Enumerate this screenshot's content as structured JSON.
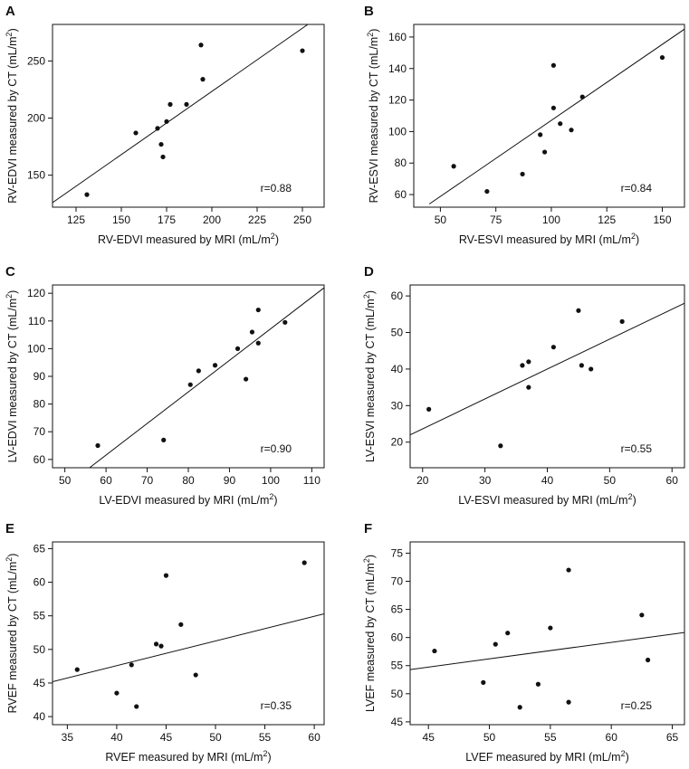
{
  "figure": {
    "background": "#ffffff",
    "ink": "#111111"
  },
  "chart_data": [
    {
      "type": "scatter",
      "panel": "A",
      "xlabel": "RV-EDVI measured by MRI (mL/m",
      "ylabel": "RV-EDVI measured by CT (mL/m",
      "unit_superscript": "2",
      "unit_close": ")",
      "xlim": [
        112,
        262
      ],
      "ylim": [
        122,
        282
      ],
      "xticks": [
        125,
        150,
        175,
        200,
        225,
        250
      ],
      "yticks": [
        150,
        200,
        250
      ],
      "x": [
        131,
        158,
        170,
        172,
        173,
        175,
        177,
        186,
        194,
        195,
        250
      ],
      "y": [
        133,
        187,
        191,
        177,
        166,
        197,
        212,
        212,
        264,
        234,
        259
      ],
      "fit_line": {
        "x": [
          112,
          253
        ],
        "y": [
          126,
          282
        ]
      },
      "r_text": "r=0.88"
    },
    {
      "type": "scatter",
      "panel": "B",
      "xlabel": "RV-ESVI measured by MRI (mL/m",
      "ylabel": "RV-ESVI  measured by CT (mL/m",
      "unit_superscript": "2",
      "unit_close": ")",
      "xlim": [
        38,
        160
      ],
      "ylim": [
        52,
        168
      ],
      "xticks": [
        50,
        75,
        100,
        125,
        150
      ],
      "yticks": [
        60,
        80,
        100,
        120,
        140,
        160
      ],
      "x": [
        56,
        71,
        87,
        95,
        97,
        101,
        101,
        104,
        109,
        114,
        150
      ],
      "y": [
        78,
        62,
        73,
        98,
        87,
        142,
        115,
        105,
        101,
        122,
        147
      ],
      "fit_line": {
        "x": [
          45,
          160
        ],
        "y": [
          54,
          165
        ]
      },
      "r_text": "r=0.84"
    },
    {
      "type": "scatter",
      "panel": "C",
      "xlabel": "LV-EDVI measured by MRI (mL/m",
      "ylabel": "LV-EDVI measured by CT (mL/m",
      "unit_superscript": "2",
      "unit_close": ")",
      "xlim": [
        47,
        113
      ],
      "ylim": [
        57,
        123
      ],
      "xticks": [
        50,
        60,
        70,
        80,
        90,
        100,
        110
      ],
      "yticks": [
        60,
        70,
        80,
        90,
        100,
        110,
        120
      ],
      "x": [
        58,
        74,
        80.5,
        82.5,
        86.5,
        92,
        94,
        95.5,
        97,
        97,
        103.5
      ],
      "y": [
        65,
        67,
        87,
        92,
        94,
        100,
        89,
        106,
        114,
        102,
        109.5
      ],
      "fit_line": {
        "x": [
          56,
          113
        ],
        "y": [
          57,
          122
        ]
      },
      "r_text": "r=0.90"
    },
    {
      "type": "scatter",
      "panel": "D",
      "xlabel": "LV-ESVI measured by MRI (mL/m",
      "ylabel": "LV-ESVI measured by CT (mL/m",
      "unit_superscript": "2",
      "unit_close": ")",
      "xlim": [
        18,
        62
      ],
      "ylim": [
        13,
        63
      ],
      "xticks": [
        20,
        30,
        40,
        50,
        60
      ],
      "yticks": [
        20,
        30,
        40,
        50,
        60
      ],
      "x": [
        21,
        32.5,
        36,
        37,
        37,
        41,
        45,
        45.5,
        47,
        52
      ],
      "y": [
        29,
        19,
        41,
        35,
        42,
        46,
        56,
        41,
        40,
        53
      ],
      "fit_line": {
        "x": [
          18,
          62
        ],
        "y": [
          22,
          58
        ]
      },
      "r_text": "r=0.55"
    },
    {
      "type": "scatter",
      "panel": "E",
      "xlabel": "RVEF measured by MRI (mL/m",
      "ylabel": "RVEF measured by CT (mL/m",
      "unit_superscript": "2",
      "unit_close": ")",
      "xlim": [
        33.5,
        61
      ],
      "ylim": [
        38.8,
        66
      ],
      "xticks": [
        35,
        40,
        45,
        50,
        55,
        60
      ],
      "yticks": [
        40,
        45,
        50,
        55,
        60,
        65
      ],
      "x": [
        36,
        40,
        41.5,
        42,
        44,
        44.5,
        45,
        46.5,
        48,
        59
      ],
      "y": [
        47,
        43.5,
        47.7,
        41.5,
        50.8,
        50.5,
        61,
        53.7,
        46.2,
        62.9
      ],
      "fit_line": {
        "x": [
          33.5,
          61
        ],
        "y": [
          45.2,
          55.3
        ]
      },
      "r_text": "r=0.35"
    },
    {
      "type": "scatter",
      "panel": "F",
      "xlabel": "LVEF measured by MRI (mL/m",
      "ylabel": "LVEF measured by CT (mL/m",
      "unit_superscript": "2",
      "unit_close": ")",
      "xlim": [
        43.5,
        66
      ],
      "ylim": [
        44.5,
        77
      ],
      "xticks": [
        45,
        50,
        55,
        60,
        65
      ],
      "yticks": [
        45,
        50,
        55,
        60,
        65,
        70,
        75
      ],
      "x": [
        45.5,
        49.5,
        50.5,
        51.5,
        52.5,
        54,
        55,
        56.5,
        56.5,
        62.5,
        63
      ],
      "y": [
        57.6,
        52,
        58.8,
        60.8,
        47.6,
        51.7,
        61.7,
        48.5,
        72,
        64,
        56
      ],
      "fit_line": {
        "x": [
          43.5,
          66
        ],
        "y": [
          54.3,
          60.9
        ]
      },
      "r_text": "r=0.25"
    }
  ]
}
